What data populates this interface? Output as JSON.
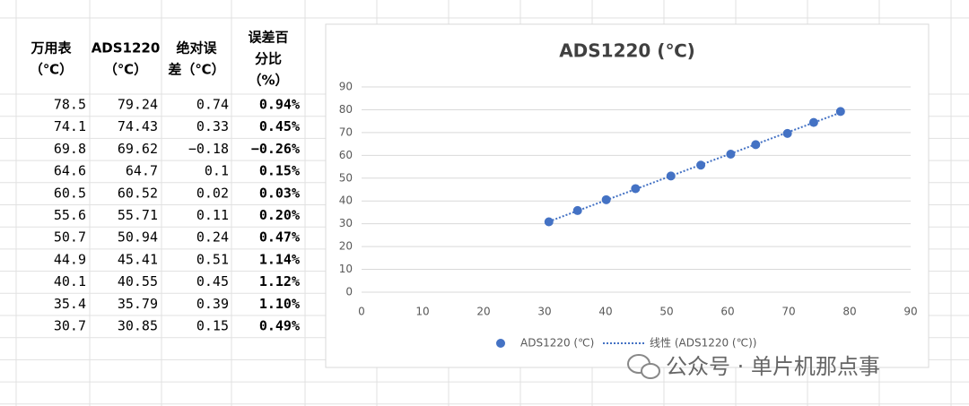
{
  "table": {
    "headers": [
      [
        "万用表",
        "（℃）"
      ],
      [
        "ADS1220",
        "（℃）"
      ],
      [
        "绝对误",
        "差（℃）"
      ],
      [
        "误差百",
        "分比",
        "（%）"
      ]
    ],
    "rows": [
      [
        "78.5",
        "79.24",
        "0.74",
        "0.94%"
      ],
      [
        "74.1",
        "74.43",
        "0.33",
        "0.45%"
      ],
      [
        "69.8",
        "69.62",
        "−0.18",
        "−0.26%"
      ],
      [
        "64.6",
        "64.7",
        "0.1",
        "0.15%"
      ],
      [
        "60.5",
        "60.52",
        "0.02",
        "0.03%"
      ],
      [
        "55.6",
        "55.71",
        "0.11",
        "0.20%"
      ],
      [
        "50.7",
        "50.94",
        "0.24",
        "0.47%"
      ],
      [
        "44.9",
        "45.41",
        "0.51",
        "1.14%"
      ],
      [
        "40.1",
        "40.55",
        "0.45",
        "1.12%"
      ],
      [
        "35.4",
        "35.79",
        "0.39",
        "1.10%"
      ],
      [
        "30.7",
        "30.85",
        "0.15",
        "0.49%"
      ]
    ]
  },
  "chart_data": {
    "type": "scatter",
    "title": "ADS1220 (℃)",
    "x": [
      78.5,
      74.1,
      69.8,
      64.6,
      60.5,
      55.6,
      50.7,
      44.9,
      40.1,
      35.4,
      30.7
    ],
    "series": [
      {
        "name": "ADS1220 (℃)",
        "color": "#4472c4",
        "values": [
          79.24,
          74.43,
          69.62,
          64.7,
          60.52,
          55.71,
          50.94,
          45.41,
          40.55,
          35.79,
          30.85
        ]
      }
    ],
    "trendline": {
      "name": "线性 (ADS1220 (℃))",
      "color": "#4472c4"
    },
    "xlim": [
      0,
      90
    ],
    "xticks": [
      0,
      10,
      20,
      30,
      40,
      50,
      60,
      70,
      80,
      90
    ],
    "ylim": [
      0,
      90
    ],
    "yticks": [
      0,
      10,
      20,
      30,
      40,
      50,
      60,
      70,
      80,
      90
    ],
    "grid": true,
    "legend": "bottom"
  },
  "watermark": {
    "text": "公众号 · 单片机那点事"
  }
}
